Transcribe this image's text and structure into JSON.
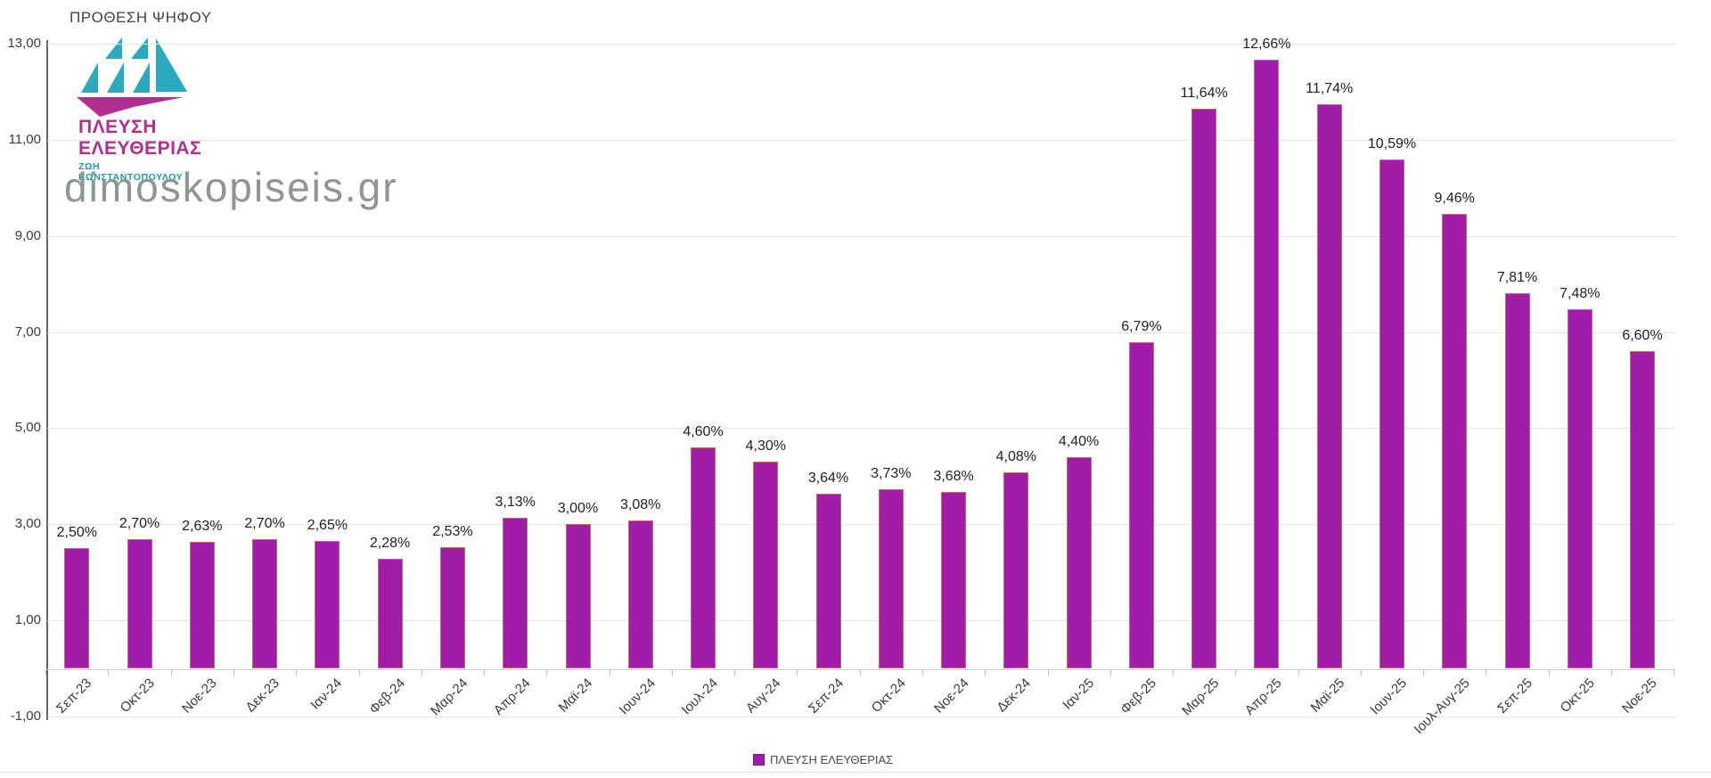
{
  "page": {
    "title": "ΠΡΟΘΕΣΗ ΨΗΦΟΥ",
    "watermark": "dimoskopiseis.gr"
  },
  "logo": {
    "line1": "ΠΛΕΥΣΗ",
    "line2": "ΕΛΕΥΘΕΡΙΑΣ",
    "line3": "ΖΩΗ ΚΩΝΣΤΑΝΤΟΠΟΥΛΟΥ",
    "sail_color": "#2BA9BE",
    "hull_color": "#B12F90"
  },
  "legend": {
    "label": "ΠΛΕΥΣΗ ΕΛΕΥΘΕΡΙΑΣ",
    "swatch_color": "#A21CAA"
  },
  "chart_data": {
    "type": "bar",
    "title": "ΠΡΟΘΕΣΗ ΨΗΦΟΥ",
    "series_name": "ΠΛΕΥΣΗ ΕΛΕΥΘΕΡΙΑΣ",
    "categories": [
      "Σεπ-23",
      "Οκτ-23",
      "Νοε-23",
      "Δεκ-23",
      "Ιαν-24",
      "Φεβ-24",
      "Μαρ-24",
      "Απρ-24",
      "Μαϊ-24",
      "Ιουν-24",
      "Ιουλ-24",
      "Αυγ-24",
      "Σεπ-24",
      "Οκτ-24",
      "Νοε-24",
      "Δεκ-24",
      "Ιαν-25",
      "Φεβ-25",
      "Μαρ-25",
      "Απρ-25",
      "Μαϊ-25",
      "Ιουν-25",
      "Ιουλ-Αυγ-25",
      "Σεπ-25",
      "Οκτ-25",
      "Νοε-25"
    ],
    "values": [
      2.5,
      2.7,
      2.63,
      2.7,
      2.65,
      2.28,
      2.53,
      3.13,
      3.0,
      3.08,
      4.6,
      4.3,
      3.64,
      3.73,
      3.68,
      4.08,
      4.4,
      6.79,
      11.64,
      12.66,
      11.74,
      10.59,
      9.46,
      7.81,
      7.48,
      6.6
    ],
    "labels": [
      "2,50%",
      "2,70%",
      "2,63%",
      "2,70%",
      "2,65%",
      "2,28%",
      "2,53%",
      "3,13%",
      "3,00%",
      "3,08%",
      "4,60%",
      "4,30%",
      "3,64%",
      "3,73%",
      "3,68%",
      "4,08%",
      "4,40%",
      "6,79%",
      "11,64%",
      "12,66%",
      "11,74%",
      "10,59%",
      "9,46%",
      "7,81%",
      "7,48%",
      "6,60%"
    ],
    "xlabel": "",
    "ylabel": "",
    "ylim": [
      -1,
      13
    ],
    "yticks": [
      13,
      11,
      9,
      7,
      5,
      3,
      1,
      -1
    ],
    "ytick_labels": [
      "13,00",
      "11,00",
      "9,00",
      "7,00",
      "5,00",
      "3,00",
      "1,00",
      "-1,00"
    ],
    "grid": true,
    "legend_position": "bottom",
    "bar_color": "#A21CAA",
    "bar_border_color": "#CD8250"
  }
}
